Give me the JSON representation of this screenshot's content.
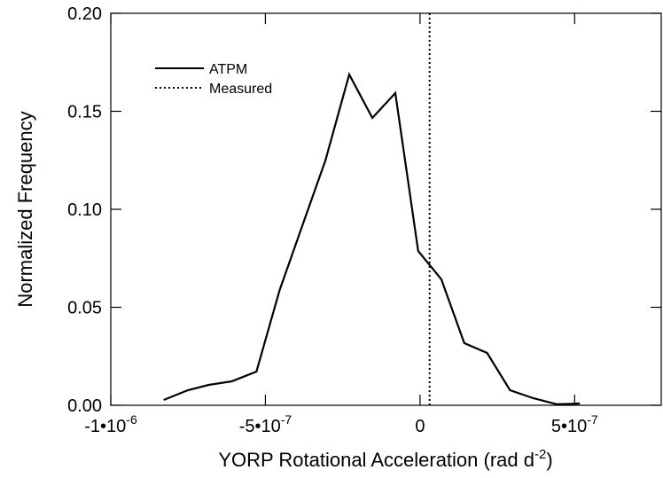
{
  "chart_data": {
    "type": "line",
    "x_label": {
      "text": "YORP Rotational Acceleration (rad d",
      "superscript": "-2",
      "suffix": ")"
    },
    "y_label": "Normalized Frequency",
    "xlim": [
      -1e-06,
      7.8e-07
    ],
    "ylim": [
      0,
      0.2
    ],
    "xticks": [
      {
        "value": -1e-06,
        "label": "-1•10",
        "superscript": "-6"
      },
      {
        "value": -5e-07,
        "label": "-5•10",
        "superscript": "-7"
      },
      0,
      {
        "value": 5e-07,
        "label": "5•10",
        "superscript": "-7"
      }
    ],
    "yticks": [
      {
        "value": 0,
        "label": "0.00"
      },
      {
        "value": 0.05,
        "label": "0.05"
      },
      {
        "value": 0.1,
        "label": "0.10"
      },
      {
        "value": 0.15,
        "label": "0.15"
      },
      {
        "value": 0.2,
        "label": "0.20"
      }
    ],
    "legend": "top-left",
    "series": [
      {
        "name": "ATPM",
        "color": "#000000",
        "style": "solid",
        "x": [
          -8.29e-07,
          -7.51e-07,
          -6.83e-07,
          -6.09e-07,
          -5.29e-07,
          -4.54e-07,
          -3.8e-07,
          -3.06e-07,
          -2.29e-07,
          -1.54e-07,
          -8e-08,
          -6e-09,
          6.9e-08,
          1.43e-07,
          2.17e-07,
          2.91e-07,
          3.66e-07,
          4.43e-07,
          5.17e-07
        ],
        "values": [
          0.0027,
          0.0077,
          0.0104,
          0.0122,
          0.0172,
          0.0588,
          0.0919,
          0.1249,
          0.1688,
          0.1466,
          0.1593,
          0.0787,
          0.0643,
          0.0317,
          0.0267,
          0.0077,
          0.0036,
          0.0005,
          0.0009
        ]
      },
      {
        "name": "Measured",
        "color": "#000000",
        "style": "dotted",
        "x_value": 3.1e-08
      }
    ]
  }
}
